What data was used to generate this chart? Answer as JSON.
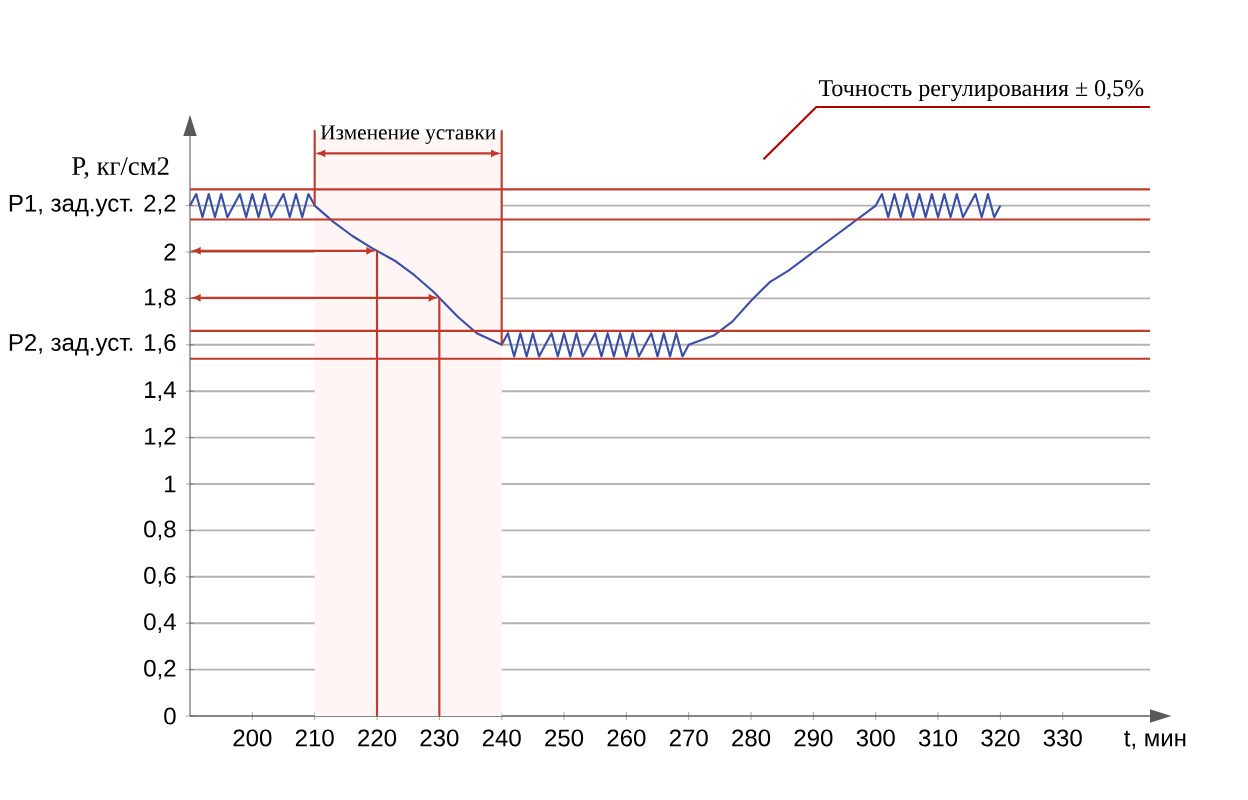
{
  "chart_data": {
    "type": "line",
    "ylabel": "P, кг/см2",
    "xlabel": "t, мин",
    "series": [
      {
        "color": "#3a4fa8",
        "x": [
          190,
          191,
          192,
          193,
          194,
          195,
          196,
          197,
          198,
          199,
          200,
          201,
          202,
          203,
          204,
          205,
          206,
          207,
          208,
          209,
          210,
          213,
          216,
          219,
          223,
          226,
          229,
          233,
          236,
          240,
          241,
          242,
          243,
          244,
          245,
          246,
          247,
          248,
          249,
          250,
          251,
          252,
          253,
          254,
          255,
          256,
          257,
          258,
          259,
          260,
          261,
          262,
          263,
          264,
          265,
          266,
          267,
          268,
          269,
          270,
          274,
          277,
          280,
          283,
          286,
          290,
          295,
          300,
          301,
          302,
          303,
          304,
          305,
          306,
          307,
          308,
          309,
          310,
          311,
          312,
          313,
          314,
          315,
          316,
          317,
          318,
          319,
          320
        ],
        "values": [
          2.2,
          2.25,
          2.15,
          2.25,
          2.15,
          2.25,
          2.15,
          2.2,
          2.25,
          2.15,
          2.25,
          2.15,
          2.25,
          2.15,
          2.2,
          2.25,
          2.15,
          2.25,
          2.15,
          2.25,
          2.2,
          2.13,
          2.07,
          2.02,
          1.96,
          1.9,
          1.83,
          1.72,
          1.65,
          1.6,
          1.65,
          1.55,
          1.65,
          1.55,
          1.65,
          1.55,
          1.6,
          1.65,
          1.55,
          1.65,
          1.55,
          1.65,
          1.55,
          1.6,
          1.65,
          1.55,
          1.65,
          1.55,
          1.65,
          1.55,
          1.65,
          1.55,
          1.6,
          1.65,
          1.55,
          1.65,
          1.55,
          1.65,
          1.55,
          1.6,
          1.64,
          1.7,
          1.79,
          1.87,
          1.92,
          2.0,
          2.1,
          2.2,
          2.25,
          2.15,
          2.25,
          2.15,
          2.25,
          2.15,
          2.25,
          2.15,
          2.25,
          2.15,
          2.25,
          2.15,
          2.25,
          2.15,
          2.2,
          2.25,
          2.15,
          2.25,
          2.15,
          2.2
        ]
      }
    ],
    "xlim": [
      190,
      344
    ],
    "ylim": [
      0,
      2.5
    ],
    "xticks": [
      200,
      210,
      220,
      230,
      240,
      250,
      260,
      270,
      280,
      290,
      300,
      310,
      320,
      330
    ],
    "yticks": [
      0,
      {
        "value": 0.2,
        "label": "0,2"
      },
      {
        "value": 0.4,
        "label": "0,4"
      },
      {
        "value": 0.6,
        "label": "0,6"
      },
      {
        "value": 0.8,
        "label": "0,8"
      },
      1,
      {
        "value": 1.2,
        "label": "1,2"
      },
      {
        "value": 1.4,
        "label": "1,4"
      },
      {
        "value": 1.6,
        "label": "P2, зад.уст.  1,6"
      },
      {
        "value": 1.8,
        "label": "1,8"
      },
      2,
      {
        "value": 2.2,
        "label": "P1, зад.уст.  2,2"
      }
    ],
    "grid": "y",
    "marker": "none",
    "line_style": "solid",
    "ref_lines": [
      {
        "axis": "y",
        "value": 2.27,
        "color": "#c0392b"
      },
      {
        "axis": "y",
        "value": 2.14,
        "color": "#c0392b"
      },
      {
        "axis": "y",
        "value": 1.66,
        "color": "#c0392b"
      },
      {
        "axis": "y",
        "value": 1.54,
        "color": "#c0392b"
      },
      {
        "axis": "x",
        "value": 220,
        "color": "#c0392b"
      },
      {
        "axis": "x",
        "value": 230,
        "color": "#c0392b"
      }
    ],
    "bands": [
      {
        "axis": "x",
        "from": 210,
        "to": 240,
        "label": "Изменение уставки"
      }
    ],
    "annotations": [
      "Точность регулирования ± 0,5%"
    ]
  }
}
